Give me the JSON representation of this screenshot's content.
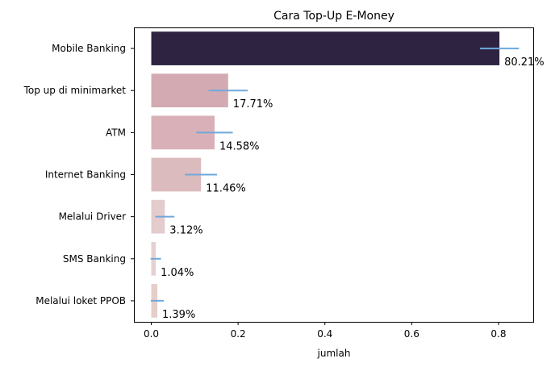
{
  "chart_data": {
    "type": "bar",
    "orientation": "horizontal",
    "title": "Cara Top-Up E-Money",
    "xlabel": "jumlah",
    "ylabel": "",
    "xlim": [
      -0.04,
      0.88
    ],
    "x_ticks": [
      0.0,
      0.2,
      0.4,
      0.6,
      0.8
    ],
    "x_tick_labels": [
      "0.0",
      "0.2",
      "0.4",
      "0.6",
      "0.8"
    ],
    "grid": false,
    "categories": [
      "Mobile Banking",
      "Top up di minimarket",
      "ATM",
      "Internet Banking",
      "Melalui Driver",
      "SMS Banking",
      "Melalui loket PPOB"
    ],
    "values": [
      0.8021,
      0.1771,
      0.1458,
      0.1146,
      0.0312,
      0.0104,
      0.0139
    ],
    "labels": [
      "80.21%",
      "17.71%",
      "14.58%",
      "11.46%",
      "3.12%",
      "1.04%",
      "1.39%"
    ],
    "error": [
      0.045,
      0.045,
      0.042,
      0.037,
      0.022,
      0.012,
      0.015
    ],
    "colors": [
      "#2e2340",
      "#d4aab2",
      "#d9b0b7",
      "#dcbbbe",
      "#e4cbcc",
      "#e6d0d0",
      "#e6cdc9"
    ],
    "error_color": "#6fa8dc"
  }
}
